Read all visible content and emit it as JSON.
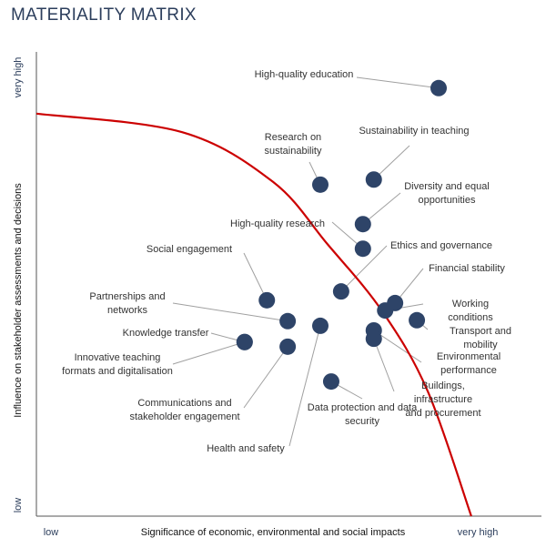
{
  "title": "MATERIALITY MATRIX",
  "chart_data": {
    "type": "scatter",
    "title": "MATERIALITY MATRIX",
    "xlabel": "Significance of economic, environmental and social impacts",
    "ylabel": "Influence on stakeholder assessments and decisions",
    "x_tick_labels": [
      "low",
      "very high"
    ],
    "y_tick_labels": [
      "low",
      "very high"
    ],
    "xlim": [
      0,
      100
    ],
    "ylim": [
      0,
      100
    ],
    "grid": false,
    "colors": {
      "points": "#2e4468",
      "threshold": "#cc0000",
      "leader": "#a0a0a0",
      "title": "#2c3e5c"
    },
    "points": [
      {
        "label": "High-quality education",
        "x": 85.0,
        "y": 92.2
      },
      {
        "label": "Research on\nsustainability",
        "x": 60.0,
        "y": 71.4
      },
      {
        "label": "Sustainability in teaching",
        "x": 71.3,
        "y": 72.5
      },
      {
        "label": "Diversity and equal\nopportunities",
        "x": 69.0,
        "y": 62.9
      },
      {
        "label": "High-quality research",
        "x": 69.0,
        "y": 57.6
      },
      {
        "label": "Ethics and governance",
        "x": 64.4,
        "y": 48.4
      },
      {
        "label": "Financial stability",
        "x": 75.8,
        "y": 45.9
      },
      {
        "label": "Working conditions",
        "x": 73.7,
        "y": 44.3
      },
      {
        "label": "Transport and mobility",
        "x": 80.4,
        "y": 42.2
      },
      {
        "label": "Social engagement",
        "x": 48.7,
        "y": 46.5
      },
      {
        "label": "Partnerships and\nnetworks",
        "x": 53.1,
        "y": 42.0
      },
      {
        "label": "Health and safety",
        "x": 60.0,
        "y": 41.0
      },
      {
        "label": "Environmental\nperformance",
        "x": 71.3,
        "y": 40.0
      },
      {
        "label": "Buildings, infrastructure\nand procurement",
        "x": 71.3,
        "y": 38.2
      },
      {
        "label": "Knowledge transfer",
        "x": 44.0,
        "y": 37.5
      },
      {
        "label": "Innovative teaching\nformats and digitalisation",
        "x": 44.0,
        "y": 37.5
      },
      {
        "label": "Communications and\nstakeholder engagement",
        "x": 53.1,
        "y": 36.5
      },
      {
        "label": "Data protection and data\nsecurity",
        "x": 62.3,
        "y": 29.0
      }
    ],
    "threshold_curve": [
      [
        0,
        86.7
      ],
      [
        30.8,
        82.7
      ],
      [
        50,
        72
      ],
      [
        61.5,
        58.6
      ],
      [
        73.1,
        44.1
      ],
      [
        82.7,
        26.9
      ],
      [
        91.9,
        0
      ]
    ]
  }
}
